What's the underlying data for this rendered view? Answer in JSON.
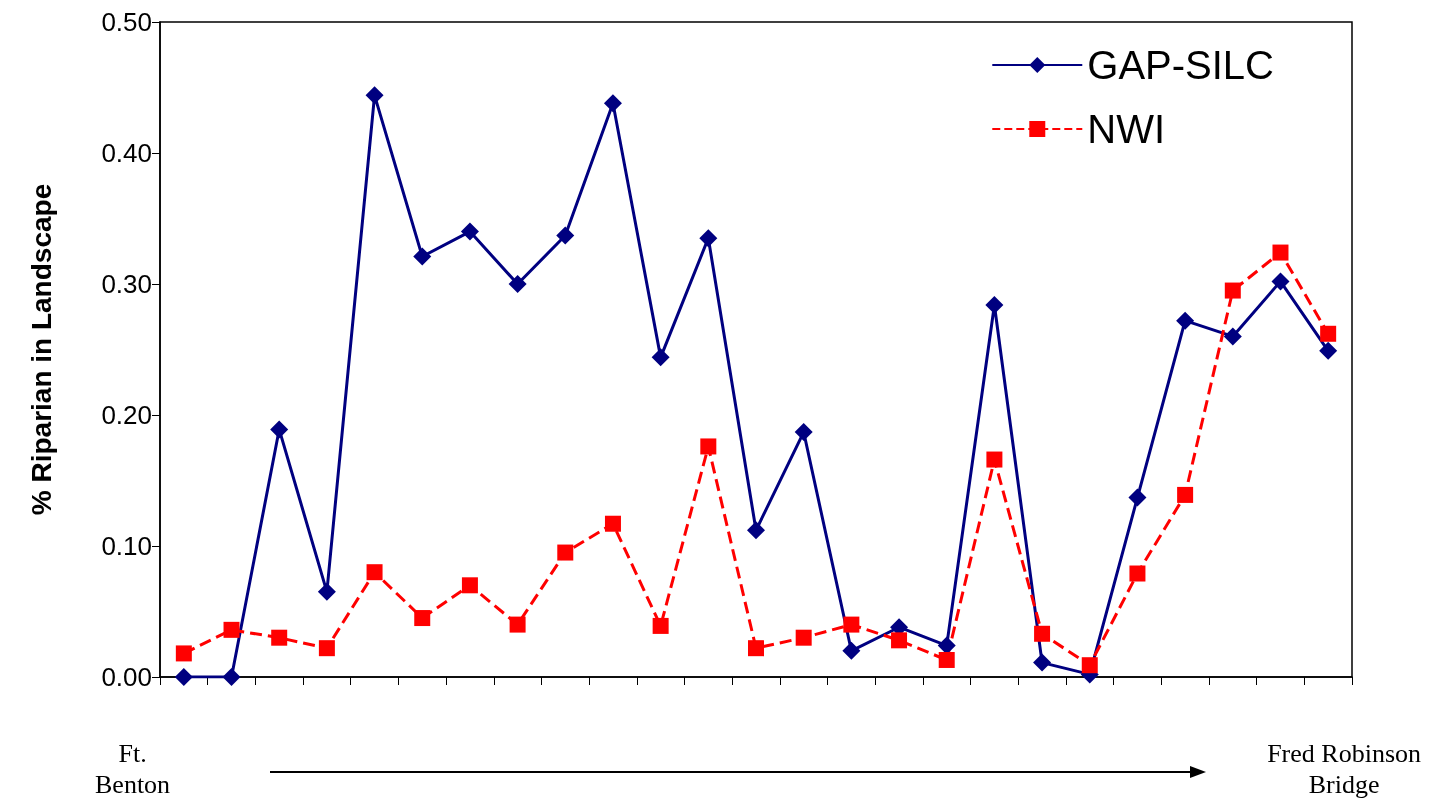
{
  "chart_data": {
    "type": "line",
    "ylabel": "% Riparian in Landscape",
    "categories": [
      null,
      null,
      null,
      null,
      null,
      null,
      null,
      null,
      null,
      null,
      null,
      null,
      null,
      null,
      null,
      null,
      null,
      null,
      null,
      null,
      null,
      null,
      null,
      null,
      null
    ],
    "series": [
      {
        "name": "GAP-SILC",
        "color": "#000080",
        "marker": "diamond",
        "line_style": "solid",
        "values": [
          0,
          0,
          0.189,
          0.065,
          0.444,
          0.321,
          0.34,
          0.3,
          0.337,
          0.438,
          0.244,
          0.335,
          0.112,
          0.187,
          0.02,
          0.038,
          0.024,
          0.284,
          0.011,
          0.002,
          0.137,
          0.272,
          0.26,
          0.302,
          0.249
        ]
      },
      {
        "name": "NWI",
        "color": "#ff0000",
        "marker": "square",
        "line_style": "dashed",
        "values": [
          0.018,
          0.036,
          0.03,
          0.022,
          0.08,
          0.045,
          0.07,
          0.04,
          0.095,
          0.117,
          0.039,
          0.176,
          0.022,
          0.03,
          0.04,
          0.028,
          0.013,
          0.166,
          0.033,
          0.009,
          0.079,
          0.139,
          0.295,
          0.324,
          0.262
        ]
      }
    ],
    "ylim": [
      0,
      0.5
    ],
    "yticks": [
      {
        "value": 0,
        "label": "0.00"
      },
      {
        "value": 0.1,
        "label": "0.10"
      },
      {
        "value": 0.2,
        "label": "0.20"
      },
      {
        "value": 0.3,
        "label": "0.30"
      },
      {
        "value": 0.4,
        "label": "0.40"
      },
      {
        "value": 0.5,
        "label": "0.50"
      }
    ],
    "tick_labels": "y",
    "legend": "top right",
    "annotations": [
      "Ft.\nBenton",
      "Fred Robinson\nBridge"
    ]
  }
}
